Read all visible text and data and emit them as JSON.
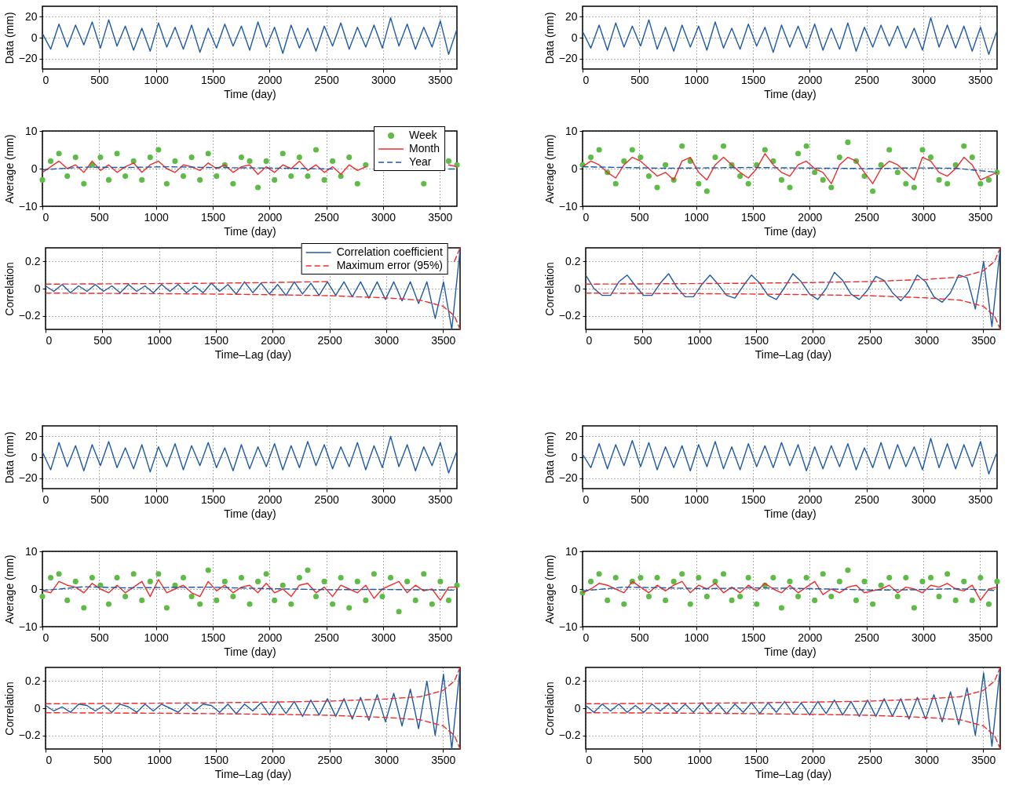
{
  "chart_data": [
    {
      "type": "line",
      "xlabel": "Time (day)",
      "ylabel": "Data (mm)",
      "xlim": [
        0,
        3650
      ],
      "xticks": [
        0,
        500,
        1000,
        1500,
        2000,
        2500,
        3000,
        3500
      ],
      "ylim": [
        -30,
        30
      ],
      "yticks": [
        -20,
        0,
        20
      ],
      "grid": true,
      "x": [
        0,
        73,
        146,
        219,
        292,
        365,
        438,
        511,
        584,
        657,
        730,
        803,
        876,
        949,
        1022,
        1095,
        1168,
        1241,
        1314,
        1387,
        1460,
        1533,
        1606,
        1679,
        1752,
        1825,
        1898,
        1971,
        2044,
        2117,
        2190,
        2263,
        2336,
        2409,
        2482,
        2555,
        2628,
        2701,
        2774,
        2847,
        2920,
        2993,
        3066,
        3139,
        3212,
        3285,
        3358,
        3431,
        3504,
        3577,
        3650
      ],
      "series": [
        {
          "color": "#1f5aa6",
          "values": [
            4,
            -11,
            13,
            -9,
            12,
            -7,
            15,
            -10,
            17,
            -8,
            11,
            -12,
            9,
            -13,
            14,
            -9,
            10,
            -11,
            12,
            -14,
            9,
            -10,
            13,
            -8,
            11,
            -12,
            15,
            -9,
            10,
            -15,
            12,
            -10,
            9,
            -13,
            11,
            -8,
            14,
            -11,
            10,
            -9,
            12,
            -10,
            19,
            -8,
            13,
            -11,
            10,
            -9,
            16,
            -16,
            8
          ]
        }
      ]
    },
    {
      "type": "line",
      "xlabel": "Time (day)",
      "ylabel": "Data (mm)",
      "xlim": [
        0,
        3650
      ],
      "xticks": [
        0,
        500,
        1000,
        1500,
        2000,
        2500,
        3000,
        3500
      ],
      "ylim": [
        -30,
        30
      ],
      "yticks": [
        -20,
        0,
        20
      ],
      "grid": true,
      "x": [
        0,
        73,
        146,
        219,
        292,
        365,
        438,
        511,
        584,
        657,
        730,
        803,
        876,
        949,
        1022,
        1095,
        1168,
        1241,
        1314,
        1387,
        1460,
        1533,
        1606,
        1679,
        1752,
        1825,
        1898,
        1971,
        2044,
        2117,
        2190,
        2263,
        2336,
        2409,
        2482,
        2555,
        2628,
        2701,
        2774,
        2847,
        2920,
        2993,
        3066,
        3139,
        3212,
        3285,
        3358,
        3431,
        3504,
        3577,
        3650
      ],
      "series": [
        {
          "color": "#1f5aa6",
          "values": [
            6,
            -10,
            12,
            -12,
            14,
            -9,
            11,
            -8,
            17,
            -11,
            10,
            -13,
            12,
            -9,
            11,
            -12,
            15,
            -10,
            9,
            -11,
            13,
            -8,
            10,
            -14,
            12,
            -9,
            11,
            -10,
            13,
            -12,
            9,
            -11,
            14,
            -13,
            10,
            -9,
            12,
            -8,
            11,
            -10,
            9,
            -12,
            19,
            -9,
            12,
            -10,
            11,
            -13,
            10,
            -16,
            7
          ]
        }
      ]
    },
    {
      "type": "line",
      "xlabel": "Time (day)",
      "ylabel": "Average (mm)",
      "xlim": [
        0,
        3650
      ],
      "xticks": [
        0,
        500,
        1000,
        1500,
        2000,
        2500,
        3000,
        3500
      ],
      "ylim": [
        -10,
        10
      ],
      "yticks": [
        -10,
        0,
        10
      ],
      "grid": true,
      "legend": "top right",
      "x": [
        0,
        73,
        146,
        219,
        292,
        365,
        438,
        511,
        584,
        657,
        730,
        803,
        876,
        949,
        1022,
        1095,
        1168,
        1241,
        1314,
        1387,
        1460,
        1533,
        1606,
        1679,
        1752,
        1825,
        1898,
        1971,
        2044,
        2117,
        2190,
        2263,
        2336,
        2409,
        2482,
        2555,
        2628,
        2701,
        2774,
        2847,
        2920,
        2993,
        3066,
        3139,
        3212,
        3285,
        3358,
        3431,
        3504,
        3577,
        3650
      ],
      "series": [
        {
          "name": "Week",
          "type": "scatter",
          "color": "#5dbb46",
          "values": [
            -3,
            2,
            4,
            -2,
            3,
            -4,
            1,
            3,
            -3,
            4,
            -2,
            2,
            -3,
            3,
            5,
            -4,
            2,
            -2,
            3,
            -3,
            4,
            -2,
            1,
            -4,
            3,
            2,
            -5,
            2,
            -3,
            4,
            -2,
            3,
            -2,
            5,
            -3,
            2,
            -2,
            3,
            -4,
            1,
            null,
            null,
            null,
            null,
            null,
            null,
            -4,
            null,
            null,
            2,
            1
          ]
        },
        {
          "name": "Month",
          "color": "#ee2c2c",
          "values": [
            -1,
            0.5,
            2,
            0,
            1,
            -1,
            2,
            -0.5,
            1,
            -1,
            0.5,
            1.5,
            -1,
            1,
            2,
            0,
            -1,
            1,
            0.5,
            -0.5,
            1.5,
            0,
            1,
            -1,
            0.5,
            1,
            -1.5,
            0.5,
            -1,
            1,
            0,
            2,
            -0.5,
            1,
            -1,
            0.5,
            -1.5,
            1,
            -0.5,
            0.5,
            null,
            null,
            null,
            null,
            null,
            null,
            null,
            null,
            null,
            1,
            0.5
          ]
        },
        {
          "name": "Year",
          "color": "#1f5aa6",
          "line_style": "dashed",
          "x": [
            0,
            365,
            730,
            1095,
            1460,
            1825,
            2190,
            2555,
            2920,
            3285,
            3580,
            3650
          ],
          "values": [
            -0.3,
            0.4,
            0.3,
            0.5,
            0.3,
            0.2,
            0.1,
            -0.1,
            null,
            null,
            -0.1,
            -0.1
          ]
        }
      ]
    },
    {
      "type": "line",
      "xlabel": "Time (day)",
      "ylabel": "Average (mm)",
      "xlim": [
        0,
        3650
      ],
      "xticks": [
        0,
        500,
        1000,
        1500,
        2000,
        2500,
        3000,
        3500
      ],
      "ylim": [
        -10,
        10
      ],
      "yticks": [
        -10,
        0,
        10
      ],
      "grid": true,
      "x": [
        0,
        73,
        146,
        219,
        292,
        365,
        438,
        511,
        584,
        657,
        730,
        803,
        876,
        949,
        1022,
        1095,
        1168,
        1241,
        1314,
        1387,
        1460,
        1533,
        1606,
        1679,
        1752,
        1825,
        1898,
        1971,
        2044,
        2117,
        2190,
        2263,
        2336,
        2409,
        2482,
        2555,
        2628,
        2701,
        2774,
        2847,
        2920,
        2993,
        3066,
        3139,
        3212,
        3285,
        3358,
        3431,
        3504,
        3577,
        3650
      ],
      "series": [
        {
          "type": "scatter",
          "color": "#5dbb46",
          "values": [
            1,
            3,
            5,
            -1,
            -4,
            2,
            5,
            3,
            -2,
            -5,
            1,
            -3,
            6,
            2,
            -4,
            -6,
            3,
            6,
            1,
            -2,
            -4,
            1,
            5,
            2,
            -3,
            -5,
            4,
            6,
            -1,
            -3,
            -5,
            3,
            7,
            2,
            -2,
            -6,
            1,
            5,
            -1,
            -4,
            -5,
            5,
            3,
            -3,
            -4,
            1,
            6,
            3,
            -4,
            -3,
            -1
          ]
        },
        {
          "color": "#ee2c2c",
          "values": [
            0.5,
            2,
            1,
            -1,
            -2.5,
            1,
            3,
            2,
            0,
            -2,
            -1,
            -3,
            2,
            3,
            -1,
            -3,
            1,
            3,
            1,
            -1,
            -2.5,
            0,
            4,
            1,
            -1,
            -2,
            1,
            2,
            0,
            -1,
            -4,
            1,
            3,
            2,
            -1,
            -4,
            0,
            2,
            1,
            -1,
            -3,
            3,
            2,
            -1,
            -2,
            0,
            3,
            1,
            -3,
            -2,
            -1
          ]
        },
        {
          "color": "#1f5aa6",
          "line_style": "dashed",
          "x": [
            0,
            365,
            730,
            1095,
            1460,
            1825,
            2190,
            2555,
            2920,
            3285,
            3650
          ],
          "values": [
            0.5,
            0.3,
            0.1,
            0.2,
            0.3,
            0.2,
            0.1,
            0,
            0.2,
            0.1,
            -1
          ]
        }
      ]
    },
    {
      "type": "line",
      "xlabel": "Time–Lag (day)",
      "ylabel": "Correlation",
      "xlim": [
        0,
        3650
      ],
      "xticks": [
        0,
        500,
        1000,
        1500,
        2000,
        2500,
        3000,
        3500
      ],
      "ylim": [
        -0.3,
        0.3
      ],
      "yticks": [
        -0.2,
        0,
        0.2
      ],
      "grid": true,
      "legend": "top right",
      "x": [
        0,
        73,
        146,
        219,
        292,
        365,
        438,
        511,
        584,
        657,
        730,
        803,
        876,
        949,
        1022,
        1095,
        1168,
        1241,
        1314,
        1387,
        1460,
        1533,
        1606,
        1679,
        1752,
        1825,
        1898,
        1971,
        2044,
        2117,
        2190,
        2263,
        2336,
        2409,
        2482,
        2555,
        2628,
        2701,
        2774,
        2847,
        2920,
        2993,
        3066,
        3139,
        3212,
        3285,
        3358,
        3431,
        3504,
        3577,
        3650
      ],
      "series": [
        {
          "name": "Correlation coefficient",
          "color": "#1f5aa6",
          "values": [
            0.02,
            -0.02,
            0.03,
            -0.03,
            0.02,
            -0.02,
            0.03,
            -0.02,
            0.02,
            -0.03,
            0.03,
            -0.02,
            0.02,
            -0.03,
            0.03,
            -0.02,
            0.03,
            -0.03,
            0.02,
            -0.03,
            0.04,
            -0.02,
            0.03,
            -0.04,
            0.05,
            -0.03,
            0.04,
            -0.04,
            0.03,
            -0.05,
            0.05,
            -0.04,
            0.04,
            -0.05,
            0.05,
            -0.05,
            0.05,
            -0.06,
            0.05,
            -0.07,
            0.05,
            -0.08,
            0.05,
            -0.09,
            0.05,
            -0.11,
            0.05,
            -0.22,
            0.05,
            -0.3,
            0.29
          ]
        },
        {
          "name": "Maximum error (95%)",
          "color": "#ee2c2c",
          "line_style": "dashed",
          "x": [
            0,
            500,
            1000,
            1500,
            2000,
            2500,
            3000,
            3300,
            3500,
            3600,
            3650
          ],
          "values": [
            0.033,
            0.035,
            0.037,
            0.04,
            0.045,
            0.052,
            null,
            null,
            null,
            0.2,
            0.3
          ]
        },
        {
          "color": "#ee2c2c",
          "line_style": "dashed",
          "x": [
            0,
            500,
            1000,
            1500,
            2000,
            2500,
            3000,
            3300,
            3500,
            3600,
            3650
          ],
          "values": [
            -0.033,
            -0.035,
            -0.037,
            -0.04,
            -0.045,
            -0.052,
            -0.068,
            -0.085,
            -0.13,
            -0.2,
            -0.3
          ]
        }
      ]
    },
    {
      "type": "line",
      "xlabel": "Time–Lag (day)",
      "ylabel": "Correlation",
      "xlim": [
        0,
        3650
      ],
      "xticks": [
        0,
        500,
        1000,
        1500,
        2000,
        2500,
        3000,
        3500
      ],
      "ylim": [
        -0.3,
        0.3
      ],
      "yticks": [
        -0.2,
        0,
        0.2
      ],
      "grid": true,
      "x": [
        0,
        73,
        146,
        219,
        292,
        365,
        438,
        511,
        584,
        657,
        730,
        803,
        876,
        949,
        1022,
        1095,
        1168,
        1241,
        1314,
        1387,
        1460,
        1533,
        1606,
        1679,
        1752,
        1825,
        1898,
        1971,
        2044,
        2117,
        2190,
        2263,
        2336,
        2409,
        2482,
        2555,
        2628,
        2701,
        2774,
        2847,
        2920,
        2993,
        3066,
        3139,
        3212,
        3285,
        3358,
        3431,
        3504,
        3577,
        3650
      ],
      "series": [
        {
          "color": "#1f5aa6",
          "values": [
            0.1,
            0,
            -0.05,
            -0.05,
            0.05,
            0.1,
            0.02,
            -0.05,
            -0.05,
            0.04,
            0.11,
            0.01,
            -0.06,
            -0.06,
            0.03,
            0.1,
            0.03,
            -0.05,
            -0.07,
            0.02,
            0.1,
            0.04,
            -0.05,
            -0.08,
            0.01,
            0.11,
            0.05,
            -0.04,
            -0.08,
            0,
            0.12,
            0.06,
            -0.04,
            -0.08,
            -0.01,
            0.09,
            0.06,
            -0.03,
            -0.09,
            -0.02,
            0.1,
            0.05,
            -0.06,
            -0.1,
            -0.03,
            0.1,
            0.08,
            -0.15,
            0.2,
            -0.28,
            0.3
          ]
        },
        {
          "color": "#ee2c2c",
          "line_style": "dashed",
          "x": [
            0,
            500,
            1000,
            1500,
            2000,
            2500,
            3000,
            3300,
            3500,
            3600,
            3650
          ],
          "values": [
            0.033,
            0.035,
            0.037,
            0.04,
            0.045,
            0.052,
            0.068,
            0.085,
            0.13,
            0.2,
            0.3
          ]
        },
        {
          "color": "#ee2c2c",
          "line_style": "dashed",
          "x": [
            0,
            500,
            1000,
            1500,
            2000,
            2500,
            3000,
            3300,
            3500,
            3600,
            3650
          ],
          "values": [
            -0.033,
            -0.035,
            -0.037,
            -0.04,
            -0.045,
            -0.052,
            -0.068,
            -0.085,
            -0.13,
            -0.2,
            -0.3
          ]
        }
      ]
    },
    {
      "type": "line",
      "xlabel": "Time (day)",
      "ylabel": "Data (mm)",
      "xlim": [
        0,
        3650
      ],
      "xticks": [
        0,
        500,
        1000,
        1500,
        2000,
        2500,
        3000,
        3500
      ],
      "ylim": [
        -30,
        30
      ],
      "yticks": [
        -20,
        0,
        20
      ],
      "grid": true,
      "x": [
        0,
        73,
        146,
        219,
        292,
        365,
        438,
        511,
        584,
        657,
        730,
        803,
        876,
        949,
        1022,
        1095,
        1168,
        1241,
        1314,
        1387,
        1460,
        1533,
        1606,
        1679,
        1752,
        1825,
        1898,
        1971,
        2044,
        2117,
        2190,
        2263,
        2336,
        2409,
        2482,
        2555,
        2628,
        2701,
        2774,
        2847,
        2920,
        2993,
        3066,
        3139,
        3212,
        3285,
        3358,
        3431,
        3504,
        3577,
        3650
      ],
      "series": [
        {
          "color": "#1f5aa6",
          "values": [
            5,
            -12,
            14,
            -9,
            11,
            -13,
            12,
            -8,
            15,
            -10,
            9,
            -11,
            12,
            -14,
            10,
            -9,
            13,
            -12,
            11,
            -8,
            14,
            -10,
            9,
            -13,
            12,
            -11,
            10,
            -9,
            13,
            -12,
            11,
            -10,
            15,
            -8,
            12,
            -11,
            10,
            -9,
            14,
            -12,
            11,
            -10,
            20,
            -9,
            12,
            -13,
            10,
            -8,
            14,
            -15,
            6
          ]
        }
      ]
    },
    {
      "type": "line",
      "xlabel": "Time (day)",
      "ylabel": "Data (mm)",
      "xlim": [
        0,
        3650
      ],
      "xticks": [
        0,
        500,
        1000,
        1500,
        2000,
        2500,
        3000,
        3500
      ],
      "ylim": [
        -30,
        30
      ],
      "yticks": [
        -20,
        0,
        20
      ],
      "grid": true,
      "x": [
        0,
        73,
        146,
        219,
        292,
        365,
        438,
        511,
        584,
        657,
        730,
        803,
        876,
        949,
        1022,
        1095,
        1168,
        1241,
        1314,
        1387,
        1460,
        1533,
        1606,
        1679,
        1752,
        1825,
        1898,
        1971,
        2044,
        2117,
        2190,
        2263,
        2336,
        2409,
        2482,
        2555,
        2628,
        2701,
        2774,
        2847,
        2920,
        2993,
        3066,
        3139,
        3212,
        3285,
        3358,
        3431,
        3504,
        3577,
        3650
      ],
      "series": [
        {
          "color": "#1f5aa6",
          "values": [
            3,
            -10,
            13,
            -11,
            12,
            -8,
            16,
            -9,
            14,
            -12,
            10,
            -10,
            11,
            -13,
            12,
            -9,
            15,
            -11,
            10,
            -12,
            13,
            -9,
            11,
            -10,
            14,
            -8,
            12,
            -13,
            10,
            -11,
            11,
            -9,
            13,
            -12,
            9,
            -10,
            14,
            -11,
            12,
            -9,
            10,
            -12,
            18,
            -10,
            13,
            -11,
            12,
            -9,
            15,
            -16,
            5
          ]
        }
      ]
    },
    {
      "type": "line",
      "xlabel": "Time (day)",
      "ylabel": "Average (mm)",
      "xlim": [
        0,
        3650
      ],
      "xticks": [
        0,
        500,
        1000,
        1500,
        2000,
        2500,
        3000,
        3500
      ],
      "ylim": [
        -10,
        10
      ],
      "yticks": [
        -10,
        0,
        10
      ],
      "grid": true,
      "x": [
        0,
        73,
        146,
        219,
        292,
        365,
        438,
        511,
        584,
        657,
        730,
        803,
        876,
        949,
        1022,
        1095,
        1168,
        1241,
        1314,
        1387,
        1460,
        1533,
        1606,
        1679,
        1752,
        1825,
        1898,
        1971,
        2044,
        2117,
        2190,
        2263,
        2336,
        2409,
        2482,
        2555,
        2628,
        2701,
        2774,
        2847,
        2920,
        2993,
        3066,
        3139,
        3212,
        3285,
        3358,
        3431,
        3504,
        3577,
        3650
      ],
      "series": [
        {
          "type": "scatter",
          "color": "#5dbb46",
          "values": [
            -2,
            3,
            4,
            -3,
            2,
            -5,
            3,
            1,
            -4,
            3,
            -2,
            4,
            -3,
            2,
            4,
            -5,
            1,
            3,
            -2,
            -4,
            5,
            -3,
            2,
            -2,
            3,
            -4,
            2,
            4,
            -3,
            1,
            -4,
            3,
            5,
            -2,
            2,
            -4,
            3,
            -5,
            2,
            -3,
            4,
            -2,
            3,
            -6,
            2,
            -3,
            4,
            -4,
            2,
            -3,
            1
          ]
        },
        {
          "color": "#ee2c2c",
          "values": [
            -0.5,
            -1,
            2,
            1,
            0.5,
            -1,
            1.5,
            0,
            -1,
            1,
            -1,
            0.5,
            2,
            -2,
            2.5,
            -1,
            0,
            1,
            -1,
            -2,
            2,
            -0.5,
            1,
            -1,
            0.5,
            1,
            -1,
            1.5,
            -1,
            0,
            -2,
            1,
            1.5,
            -1,
            0.5,
            -2,
            1,
            0,
            -1,
            1,
            -2.5,
            0,
            1,
            2,
            -1,
            1,
            -0.5,
            0,
            -3,
            0.5,
            0.5
          ]
        },
        {
          "color": "#1f5aa6",
          "line_style": "dashed",
          "x": [
            0,
            365,
            730,
            1095,
            1460,
            1825,
            2190,
            2555,
            2920,
            3285,
            3650
          ],
          "values": [
            -0.4,
            0.6,
            0.3,
            0.4,
            0.5,
            0.2,
            0,
            -0.2,
            -0.1,
            -0.2,
            -0.3
          ]
        }
      ]
    },
    {
      "type": "line",
      "xlabel": "Time (day)",
      "ylabel": "Average (mm)",
      "xlim": [
        0,
        3650
      ],
      "xticks": [
        0,
        500,
        1000,
        1500,
        2000,
        2500,
        3000,
        3500
      ],
      "ylim": [
        -10,
        10
      ],
      "yticks": [
        -10,
        0,
        10
      ],
      "grid": true,
      "x": [
        0,
        73,
        146,
        219,
        292,
        365,
        438,
        511,
        584,
        657,
        730,
        803,
        876,
        949,
        1022,
        1095,
        1168,
        1241,
        1314,
        1387,
        1460,
        1533,
        1606,
        1679,
        1752,
        1825,
        1898,
        1971,
        2044,
        2117,
        2190,
        2263,
        2336,
        2409,
        2482,
        2555,
        2628,
        2701,
        2774,
        2847,
        2920,
        2993,
        3066,
        3139,
        3212,
        3285,
        3358,
        3431,
        3504,
        3577,
        3650
      ],
      "series": [
        {
          "type": "scatter",
          "color": "#5dbb46",
          "values": [
            -1,
            2,
            4,
            -3,
            3,
            -4,
            2,
            3,
            -2,
            3,
            -3,
            2,
            4,
            -4,
            3,
            -2,
            2,
            4,
            -3,
            -2,
            3,
            -4,
            1,
            3,
            -5,
            2,
            -2,
            3,
            -3,
            4,
            -2,
            2,
            5,
            -3,
            2,
            -4,
            1,
            3,
            -2,
            3,
            -5,
            2,
            3,
            -2,
            4,
            -3,
            2,
            -3,
            3,
            -4,
            2
          ]
        },
        {
          "color": "#ee2c2c",
          "values": [
            -1,
            0,
            1.5,
            1,
            0,
            -1,
            2,
            0.5,
            -1,
            1,
            -0.5,
            1,
            2,
            -1,
            1,
            0,
            1.5,
            -1,
            0.5,
            -1,
            1,
            -0.5,
            1.5,
            0,
            -1,
            1,
            -1,
            0.5,
            2,
            -1.5,
            0,
            -1,
            0.5,
            1,
            -1,
            -0.5,
            0,
            1,
            -1,
            0.5,
            0,
            -1,
            1,
            0.5,
            1.5,
            0,
            -0.5,
            1,
            -3,
            0,
            0.5
          ]
        },
        {
          "color": "#1f5aa6",
          "line_style": "dashed",
          "x": [
            0,
            365,
            730,
            1095,
            1460,
            1825,
            2190,
            2555,
            2920,
            3285,
            3650
          ],
          "values": [
            -0.5,
            0.5,
            0.3,
            0.1,
            0.3,
            0.2,
            0,
            -0.3,
            -0.2,
            0.1,
            -0.4
          ]
        }
      ]
    },
    {
      "type": "line",
      "xlabel": "Time–Lag (day)",
      "ylabel": "Correlation",
      "xlim": [
        0,
        3650
      ],
      "xticks": [
        0,
        500,
        1000,
        1500,
        2000,
        2500,
        3000,
        3500
      ],
      "ylim": [
        -0.3,
        0.3
      ],
      "yticks": [
        -0.2,
        0,
        0.2
      ],
      "grid": true,
      "x": [
        0,
        73,
        146,
        219,
        292,
        365,
        438,
        511,
        584,
        657,
        730,
        803,
        876,
        949,
        1022,
        1095,
        1168,
        1241,
        1314,
        1387,
        1460,
        1533,
        1606,
        1679,
        1752,
        1825,
        1898,
        1971,
        2044,
        2117,
        2190,
        2263,
        2336,
        2409,
        2482,
        2555,
        2628,
        2701,
        2774,
        2847,
        2920,
        2993,
        3066,
        3139,
        3212,
        3285,
        3358,
        3431,
        3504,
        3577,
        3650
      ],
      "series": [
        {
          "color": "#1f5aa6",
          "values": [
            0.02,
            -0.02,
            0.01,
            -0.03,
            0.03,
            0.02,
            -0.02,
            0.02,
            -0.03,
            0.03,
            0.01,
            -0.03,
            0.03,
            -0.02,
            0.03,
            0,
            -0.03,
            0.03,
            -0.02,
            0.03,
            0.02,
            -0.03,
            0.03,
            -0.04,
            0.03,
            -0.02,
            0.04,
            -0.05,
            0.05,
            -0.04,
            0.05,
            -0.06,
            0.06,
            -0.05,
            0.07,
            -0.06,
            0.07,
            -0.08,
            0.08,
            -0.09,
            0.1,
            -0.1,
            0.11,
            -0.13,
            0.14,
            -0.15,
            0.2,
            -0.2,
            0.25,
            -0.3,
            0.3
          ]
        },
        {
          "color": "#ee2c2c",
          "line_style": "dashed",
          "x": [
            0,
            500,
            1000,
            1500,
            2000,
            2500,
            3000,
            3300,
            3500,
            3600,
            3650
          ],
          "values": [
            0.033,
            0.035,
            0.037,
            0.04,
            0.045,
            0.052,
            0.068,
            0.085,
            0.13,
            0.2,
            0.3
          ]
        },
        {
          "color": "#ee2c2c",
          "line_style": "dashed",
          "x": [
            0,
            500,
            1000,
            1500,
            2000,
            2500,
            3000,
            3300,
            3500,
            3600,
            3650
          ],
          "values": [
            -0.033,
            -0.035,
            -0.037,
            -0.04,
            -0.045,
            -0.052,
            -0.068,
            -0.085,
            -0.13,
            -0.2,
            -0.3
          ]
        }
      ]
    },
    {
      "type": "line",
      "xlabel": "Time–Lag (day)",
      "ylabel": "Correlation",
      "xlim": [
        0,
        3650
      ],
      "xticks": [
        0,
        500,
        1000,
        1500,
        2000,
        2500,
        3000,
        3500
      ],
      "ylim": [
        -0.3,
        0.3
      ],
      "yticks": [
        -0.2,
        0,
        0.2
      ],
      "grid": true,
      "x": [
        0,
        73,
        146,
        219,
        292,
        365,
        438,
        511,
        584,
        657,
        730,
        803,
        876,
        949,
        1022,
        1095,
        1168,
        1241,
        1314,
        1387,
        1460,
        1533,
        1606,
        1679,
        1752,
        1825,
        1898,
        1971,
        2044,
        2117,
        2190,
        2263,
        2336,
        2409,
        2482,
        2555,
        2628,
        2701,
        2774,
        2847,
        2920,
        2993,
        3066,
        3139,
        3212,
        3285,
        3358,
        3431,
        3504,
        3577,
        3650
      ],
      "series": [
        {
          "color": "#1f5aa6",
          "values": [
            0.02,
            -0.03,
            0.03,
            -0.02,
            0.03,
            -0.03,
            0.02,
            -0.03,
            0.03,
            -0.02,
            0.03,
            -0.03,
            0.03,
            -0.03,
            0.04,
            -0.03,
            0.03,
            -0.04,
            0.03,
            -0.03,
            0.04,
            -0.04,
            0.04,
            -0.03,
            0.05,
            -0.04,
            0.04,
            -0.05,
            0.05,
            -0.04,
            0.06,
            -0.05,
            0.05,
            -0.06,
            0.06,
            -0.06,
            0.07,
            -0.06,
            0.07,
            -0.08,
            0.08,
            -0.08,
            0.1,
            -0.1,
            0.12,
            -0.12,
            0.15,
            -0.2,
            0.26,
            -0.28,
            0.3
          ]
        },
        {
          "color": "#ee2c2c",
          "line_style": "dashed",
          "x": [
            0,
            500,
            1000,
            1500,
            2000,
            2500,
            3000,
            3300,
            3500,
            3600,
            3650
          ],
          "values": [
            0.033,
            0.035,
            0.037,
            0.04,
            0.045,
            0.052,
            0.068,
            0.085,
            0.13,
            0.2,
            0.3
          ]
        },
        {
          "color": "#ee2c2c",
          "line_style": "dashed",
          "x": [
            0,
            500,
            1000,
            1500,
            2000,
            2500,
            3000,
            3300,
            3500,
            3600,
            3650
          ],
          "values": [
            -0.033,
            -0.035,
            -0.037,
            -0.04,
            -0.045,
            -0.052,
            -0.068,
            -0.085,
            -0.13,
            -0.2,
            -0.3
          ]
        }
      ]
    }
  ]
}
